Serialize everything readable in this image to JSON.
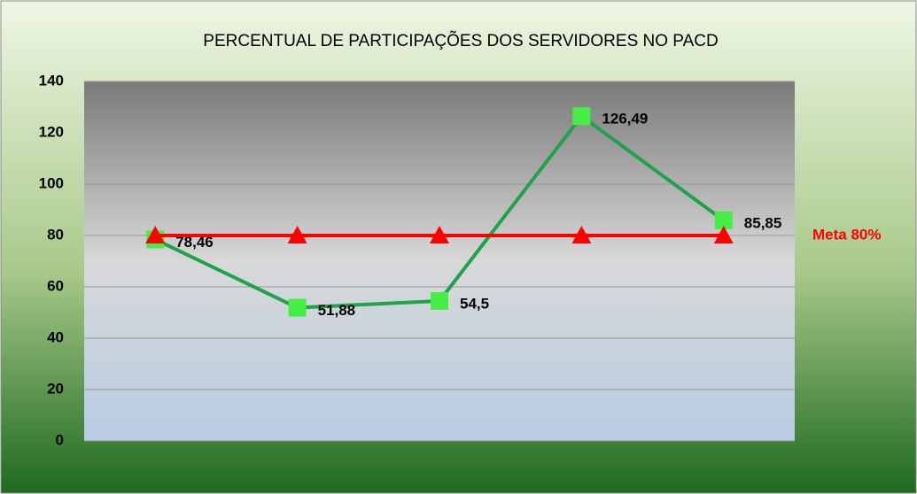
{
  "chart_data": {
    "type": "line",
    "title": "PERCENTUAL DE PARTICIPAÇÕES DOS SERVIDORES NO PACD",
    "categories": [
      null,
      null,
      null,
      null,
      null
    ],
    "series": [
      {
        "color": "#1fa24a",
        "marker_color": "#44ee44",
        "marker": "square",
        "values": [
          78.46,
          51.88,
          54.5,
          126.49,
          85.85
        ],
        "value_labels": [
          "78,46",
          "51,88",
          "54,5",
          "126,49",
          "85,85"
        ]
      },
      {
        "name": "Meta 80%",
        "color": "#ff0000",
        "marker_color": "#ff0000",
        "marker": "triangle",
        "values": [
          80,
          80,
          80,
          80,
          80
        ]
      }
    ],
    "ylim": [
      0,
      140
    ],
    "yticks": [
      0,
      20,
      40,
      60,
      80,
      100,
      120,
      140
    ],
    "grid": true
  }
}
